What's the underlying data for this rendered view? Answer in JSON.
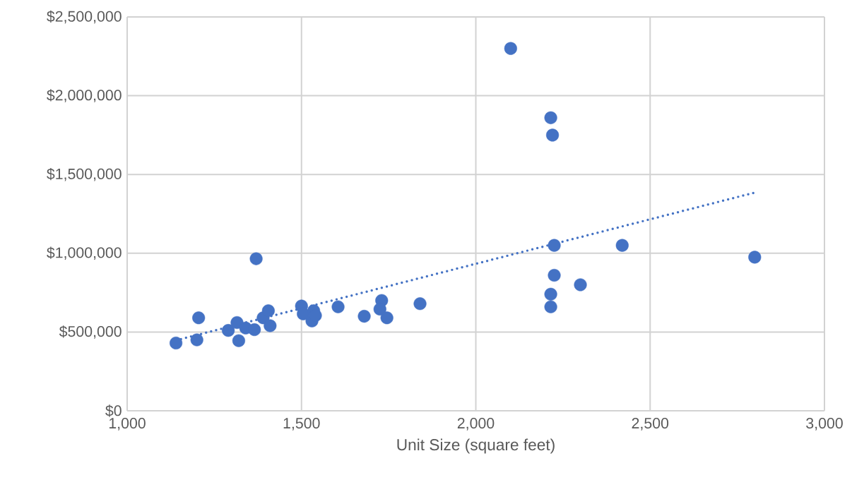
{
  "chart_data": {
    "type": "scatter",
    "xlabel": "Unit Size (square feet)",
    "xlim": [
      1000,
      3000
    ],
    "ylim": [
      0,
      2500000
    ],
    "xticks": [
      {
        "value": 1000,
        "label": "1,000"
      },
      {
        "value": 1500,
        "label": "1,500"
      },
      {
        "value": 2000,
        "label": "2,000"
      },
      {
        "value": 2500,
        "label": "2,500"
      },
      {
        "value": 3000,
        "label": "3,000"
      }
    ],
    "yticks": [
      {
        "value": 0,
        "label": "$0"
      },
      {
        "value": 500000,
        "label": "$500,000"
      },
      {
        "value": 1000000,
        "label": "$1,000,000"
      },
      {
        "value": 1500000,
        "label": "$1,500,000"
      },
      {
        "value": 2000000,
        "label": "$2,000,000"
      },
      {
        "value": 2500000,
        "label": "$2,500,000"
      }
    ],
    "grid": true,
    "marker": "circle",
    "series": [
      {
        "type": "scatter",
        "color": "#4472c4",
        "x": [
          1140,
          1205,
          1200,
          1290,
          1315,
          1320,
          1340,
          1365,
          1390,
          1405,
          1410,
          1370,
          1500,
          1505,
          1535,
          1530,
          1540,
          1605,
          1680,
          1730,
          1725,
          1745,
          1840,
          2215,
          2215,
          2300,
          2100,
          2215,
          2220,
          2225,
          2420,
          2800,
          2225
        ],
        "values": [
          430000,
          590000,
          450000,
          510000,
          560000,
          445000,
          525000,
          515000,
          590000,
          635000,
          540000,
          965000,
          665000,
          615000,
          635000,
          570000,
          605000,
          660000,
          600000,
          700000,
          645000,
          590000,
          680000,
          740000,
          660000,
          800000,
          2300000,
          1860000,
          1750000,
          1050000,
          1050000,
          975000,
          860000
        ]
      },
      {
        "type": "line",
        "color": "#4472c4",
        "line_style": "dotted",
        "marker": "none",
        "x": [
          1140,
          2800
        ],
        "values": [
          447000,
          1385000
        ]
      }
    ]
  }
}
